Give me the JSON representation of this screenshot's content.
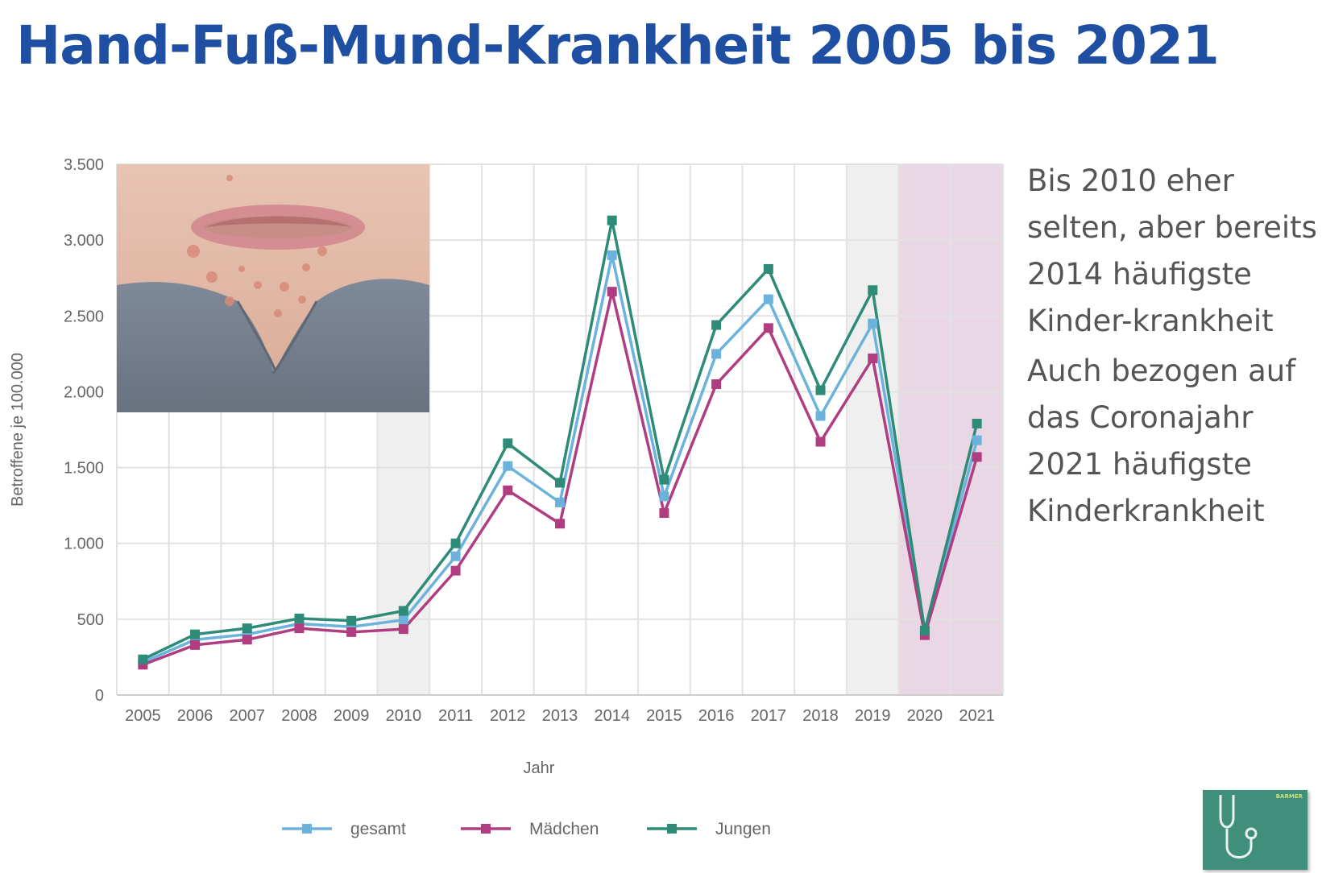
{
  "title": "Hand-Fuß-Mund-Krankheit 2005 bis 2021",
  "side_text": {
    "paragraph1": "Bis 2010 eher selten, aber bereits 2014 häufigste Kinder-krankheit",
    "paragraph2": "Auch bezogen auf das Coronajahr 2021 häufigste Kinderkrankheit"
  },
  "logo_text": "BARMER",
  "chart_data": {
    "type": "line",
    "xlabel": "Jahr",
    "ylabel": "Betroffene je 100.000",
    "ylim": [
      0,
      3500
    ],
    "yticks": [
      0,
      500,
      1000,
      1500,
      2000,
      2500,
      3000,
      3500
    ],
    "ytick_labels": [
      "0",
      "500",
      "1.000",
      "1.500",
      "2.000",
      "2.500",
      "3.000",
      "3.500"
    ],
    "categories": [
      "2005",
      "2006",
      "2007",
      "2008",
      "2009",
      "2010",
      "2011",
      "2012",
      "2013",
      "2014",
      "2015",
      "2016",
      "2017",
      "2018",
      "2019",
      "2020",
      "2021"
    ],
    "highlighted_categories": [
      "2010",
      "2019"
    ],
    "highlighted_color": "#efefef",
    "corona_categories": [
      "2020",
      "2021"
    ],
    "corona_color": "#e9d7e5",
    "grid": true,
    "legend_position": "bottom",
    "series": [
      {
        "name": "gesamt",
        "color": "#6bb3dc",
        "values": [
          215,
          365,
          400,
          470,
          450,
          495,
          915,
          1510,
          1270,
          2900,
          1310,
          2250,
          2610,
          1840,
          2450,
          410,
          1680
        ]
      },
      {
        "name": "Mädchen",
        "color": "#b03d7f",
        "values": [
          200,
          330,
          365,
          440,
          415,
          435,
          820,
          1350,
          1130,
          2660,
          1200,
          2050,
          2420,
          1670,
          2220,
          395,
          1570
        ]
      },
      {
        "name": "Jungen",
        "color": "#2e8b77",
        "values": [
          235,
          400,
          440,
          505,
          490,
          555,
          1000,
          1660,
          1400,
          3130,
          1420,
          2440,
          2810,
          2010,
          2670,
          425,
          1790
        ]
      }
    ]
  }
}
